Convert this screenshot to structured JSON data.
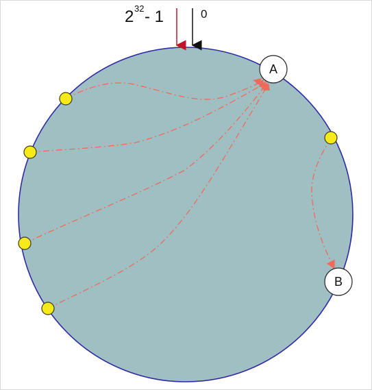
{
  "ring": {
    "fill": "#a0bfc3",
    "stroke": "#2e2aa6"
  },
  "markers": {
    "max_base": "2",
    "max_exponent": "32",
    "max_suffix": "- 1",
    "zero_label": "0",
    "max_arrow_color": "#c0142c",
    "zero_arrow_color": "#111111"
  },
  "servers": [
    {
      "label": "A"
    },
    {
      "label": "B"
    }
  ],
  "keys": {
    "count": 5,
    "color": "#f7ea1a",
    "stroke": "#3a3a1a"
  },
  "mappings": {
    "color": "#ee6a5a"
  }
}
